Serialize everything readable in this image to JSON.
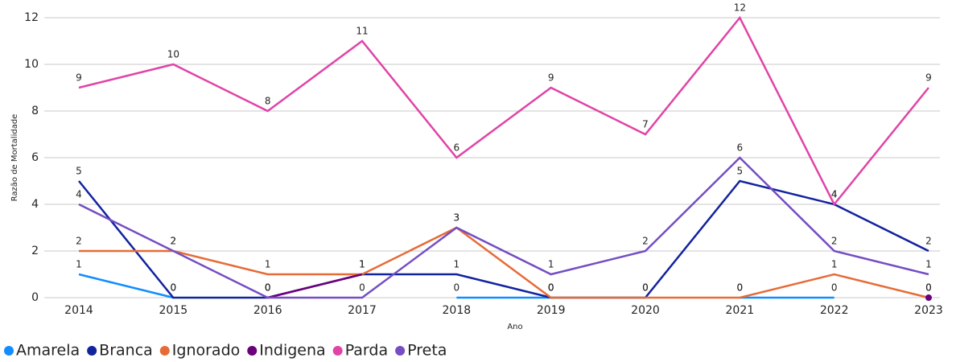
{
  "chart_data": {
    "type": "line",
    "x_label": "Ano",
    "y_label": "Razão de Mortalidade",
    "categories": [
      "2014",
      "2015",
      "2016",
      "2017",
      "2018",
      "2019",
      "2020",
      "2021",
      "2022",
      "2023"
    ],
    "series": [
      {
        "name": "Amarela",
        "color": "#118DFF",
        "values": [
          1,
          0,
          null,
          null,
          0,
          0,
          null,
          0,
          0,
          null
        ]
      },
      {
        "name": "Branca",
        "color": "#12239E",
        "values": [
          5,
          0,
          0,
          1,
          1,
          0,
          0,
          5,
          4,
          2
        ]
      },
      {
        "name": "Ignorado",
        "color": "#E66C37",
        "values": [
          2,
          2,
          1,
          1,
          3,
          0,
          0,
          0,
          1,
          0
        ]
      },
      {
        "name": "Indigena",
        "color": "#6B007B",
        "values": [
          null,
          null,
          0,
          1,
          null,
          null,
          null,
          null,
          null,
          0
        ]
      },
      {
        "name": "Parda",
        "color": "#E044A7",
        "values": [
          9,
          10,
          8,
          11,
          6,
          9,
          7,
          12,
          4,
          9
        ]
      },
      {
        "name": "Preta",
        "color": "#744EC2",
        "values": [
          4,
          2,
          0,
          0,
          3,
          1,
          2,
          6,
          2,
          1
        ]
      }
    ],
    "ylim": [
      0,
      12
    ],
    "yticks": [
      0,
      2,
      4,
      6,
      8,
      10,
      12
    ],
    "grid": true,
    "legend": "bottom-left"
  }
}
